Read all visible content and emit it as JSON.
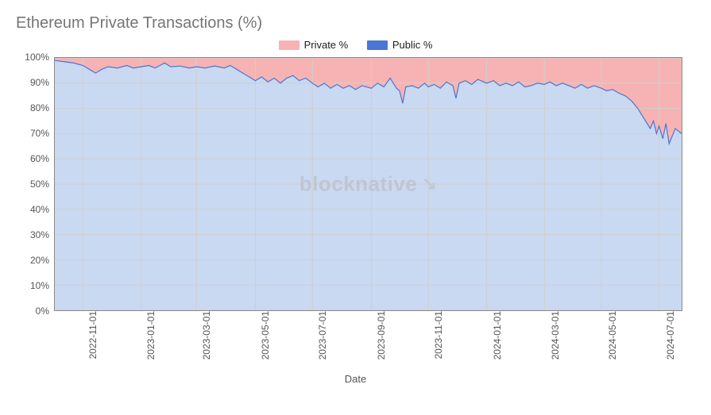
{
  "chart": {
    "type": "stacked-area",
    "title": "Ethereum Private Transactions (%)",
    "title_fontsize": 20,
    "title_color": "#757575",
    "background_color": "#ffffff",
    "watermark": "blocknative",
    "watermark_color": "#b8b8b8",
    "legend": {
      "position": "top-center",
      "fontsize": 13,
      "items": [
        {
          "label": "Private %",
          "color": "#f7b3b3"
        },
        {
          "label": "Public %",
          "color": "#4a76d4"
        }
      ]
    },
    "series": {
      "public_fill_color": "#c9d9f2",
      "private_fill_color": "#f7b3b3",
      "line_color": "#4a76d4",
      "line_width": 1.2
    },
    "yaxis": {
      "ylim": [
        0,
        100
      ],
      "tick_step": 10,
      "tick_suffix": "%",
      "tick_fontsize": 12,
      "tick_color": "#555555",
      "grid": true,
      "grid_color": "#cfcfcf"
    },
    "xaxis": {
      "title": "Date",
      "title_fontsize": 13,
      "title_color": "#555555",
      "tick_fontsize": 12,
      "tick_color": "#555555",
      "tick_rotation_deg": -90,
      "grid": true,
      "grid_color": "#cfcfcf",
      "labels": [
        "2022-11-01",
        "2023-01-01",
        "2023-03-01",
        "2023-05-01",
        "2023-07-01",
        "2023-09-01",
        "2023-11-01",
        "2024-01-01",
        "2024-03-01",
        "2024-05-01",
        "2024-07-01"
      ],
      "label_positions_pct": [
        4.5,
        13.8,
        22.6,
        32.0,
        41.1,
        50.5,
        59.6,
        68.9,
        78.1,
        87.2,
        96.4
      ]
    },
    "data": {
      "comment": "Each point is [x_pct_of_width, public_pct]. private_pct = 100 - public_pct. Values estimated from gridlines.",
      "public_pct_by_x": [
        [
          0.0,
          99.0
        ],
        [
          1.5,
          98.5
        ],
        [
          3.0,
          98.0
        ],
        [
          4.5,
          97.0
        ],
        [
          5.5,
          95.5
        ],
        [
          6.5,
          94.0
        ],
        [
          7.5,
          95.5
        ],
        [
          8.5,
          96.5
        ],
        [
          10.0,
          96.0
        ],
        [
          11.5,
          97.0
        ],
        [
          12.5,
          96.0
        ],
        [
          13.8,
          96.5
        ],
        [
          15.0,
          97.0
        ],
        [
          16.0,
          96.0
        ],
        [
          17.5,
          98.0
        ],
        [
          18.5,
          96.5
        ],
        [
          20.0,
          96.8
        ],
        [
          21.5,
          96.0
        ],
        [
          22.6,
          96.5
        ],
        [
          24.0,
          96.0
        ],
        [
          25.5,
          96.8
        ],
        [
          27.0,
          96.0
        ],
        [
          28.0,
          97.0
        ],
        [
          29.0,
          95.5
        ],
        [
          30.0,
          94.0
        ],
        [
          31.0,
          92.5
        ],
        [
          32.0,
          91.0
        ],
        [
          33.0,
          92.5
        ],
        [
          34.0,
          90.5
        ],
        [
          35.0,
          92.0
        ],
        [
          36.0,
          90.0
        ],
        [
          37.0,
          92.0
        ],
        [
          38.0,
          93.0
        ],
        [
          39.0,
          91.0
        ],
        [
          40.0,
          92.0
        ],
        [
          41.1,
          90.0
        ],
        [
          42.0,
          88.5
        ],
        [
          43.0,
          90.0
        ],
        [
          44.0,
          88.0
        ],
        [
          45.0,
          89.5
        ],
        [
          46.0,
          88.0
        ],
        [
          47.0,
          89.0
        ],
        [
          48.0,
          87.5
        ],
        [
          49.0,
          89.0
        ],
        [
          50.5,
          88.0
        ],
        [
          51.5,
          90.0
        ],
        [
          52.5,
          88.5
        ],
        [
          53.5,
          92.0
        ],
        [
          54.5,
          88.0
        ],
        [
          55.0,
          87.0
        ],
        [
          55.5,
          82.0
        ],
        [
          56.0,
          88.5
        ],
        [
          57.0,
          89.0
        ],
        [
          58.0,
          88.0
        ],
        [
          59.0,
          90.0
        ],
        [
          59.6,
          88.5
        ],
        [
          60.5,
          89.5
        ],
        [
          61.5,
          88.0
        ],
        [
          62.5,
          90.5
        ],
        [
          63.5,
          89.0
        ],
        [
          64.0,
          84.0
        ],
        [
          64.5,
          90.0
        ],
        [
          65.5,
          91.0
        ],
        [
          66.5,
          89.5
        ],
        [
          67.5,
          91.5
        ],
        [
          68.9,
          90.0
        ],
        [
          70.0,
          91.0
        ],
        [
          71.0,
          89.0
        ],
        [
          72.0,
          90.0
        ],
        [
          73.0,
          89.0
        ],
        [
          74.0,
          90.5
        ],
        [
          75.0,
          88.5
        ],
        [
          76.0,
          89.0
        ],
        [
          77.0,
          90.0
        ],
        [
          78.1,
          89.5
        ],
        [
          79.0,
          90.5
        ],
        [
          80.0,
          89.0
        ],
        [
          81.0,
          90.0
        ],
        [
          82.0,
          89.0
        ],
        [
          83.0,
          88.0
        ],
        [
          84.0,
          89.5
        ],
        [
          85.0,
          88.0
        ],
        [
          86.0,
          89.0
        ],
        [
          87.2,
          88.0
        ],
        [
          88.0,
          87.0
        ],
        [
          89.0,
          87.5
        ],
        [
          90.0,
          86.0
        ],
        [
          91.0,
          85.0
        ],
        [
          92.0,
          83.0
        ],
        [
          93.0,
          80.0
        ],
        [
          94.0,
          76.0
        ],
        [
          95.0,
          72.0
        ],
        [
          95.5,
          75.0
        ],
        [
          96.0,
          70.0
        ],
        [
          96.4,
          73.0
        ],
        [
          97.0,
          68.0
        ],
        [
          97.5,
          74.0
        ],
        [
          98.0,
          66.0
        ],
        [
          99.0,
          72.0
        ],
        [
          100.0,
          70.0
        ]
      ]
    }
  }
}
